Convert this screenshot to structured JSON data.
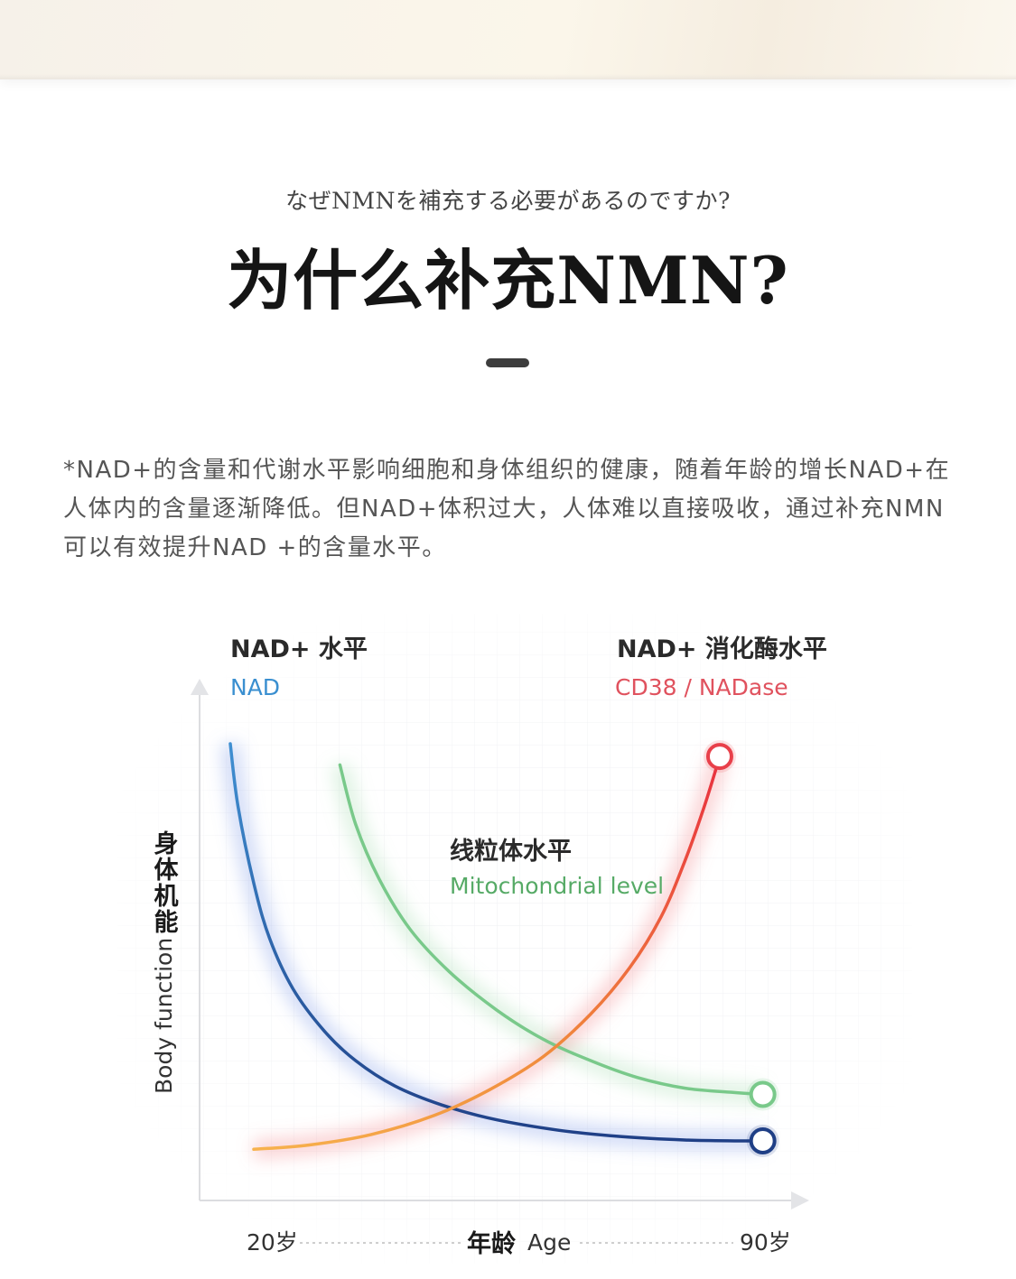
{
  "header": {
    "subtitle_ja": "なぜNMNを補充する必要があるのですか?",
    "title": "为什么补充NMN?"
  },
  "intro": {
    "text": "*NAD+的含量和代谢水平影响细胞和身体组织的健康，随着年龄的增长NAD+在人体内的含量逐渐降低。但NAD+体积过大，人体难以直接吸收，通过补充NMN可以有效提升NAD +的含量水平。"
  },
  "colors": {
    "nad": "#2f6fb4",
    "nad_end": "#1f3f86",
    "cd38": "#e8404a",
    "cd38_start": "#f6a347",
    "mito": "#79c98a",
    "mito_label": "#56aa66",
    "cd38_label": "#e0525e",
    "nad_label": "#3a8fd0"
  },
  "chart_data": {
    "type": "line",
    "title": "",
    "ylabel_cn": "身体机能",
    "ylabel_en": "Body function",
    "xlabel_cn": "年龄",
    "xlabel_en": "Age",
    "x_tick_labels": [
      "20岁",
      "90岁"
    ],
    "x_range": [
      20,
      90
    ],
    "y_range": [
      0,
      100
    ],
    "series": [
      {
        "key": "nad",
        "name_cn": "NAD+ 水平",
        "name_en": "NAD",
        "x": [
          20,
          21,
          23,
          25,
          28,
          32,
          36,
          41,
          47,
          54,
          62,
          70,
          78,
          85,
          88
        ],
        "y": [
          97,
          82,
          64,
          51,
          39,
          29,
          22,
          16,
          11.5,
          8,
          5.5,
          4,
          3.2,
          3,
          3
        ]
      },
      {
        "key": "mito",
        "name_cn": "线粒体水平",
        "name_en": "Mitochondrial level",
        "x": [
          34,
          36,
          39,
          43,
          48,
          54,
          60,
          66,
          72,
          78,
          84,
          88
        ],
        "y": [
          92,
          78,
          65,
          53,
          43,
          34,
          27,
          22,
          18,
          15.5,
          14.5,
          14
        ]
      },
      {
        "key": "cd38",
        "name_cn": "NAD+ 消化酶水平",
        "name_en": "CD38 / NADase",
        "x": [
          23,
          30,
          38,
          46,
          53,
          60,
          66,
          71,
          75,
          78,
          80.5,
          82.5
        ],
        "y": [
          1,
          2,
          4.5,
          9,
          15,
          23,
          33,
          44,
          56,
          69,
          82,
          94
        ]
      }
    ]
  }
}
